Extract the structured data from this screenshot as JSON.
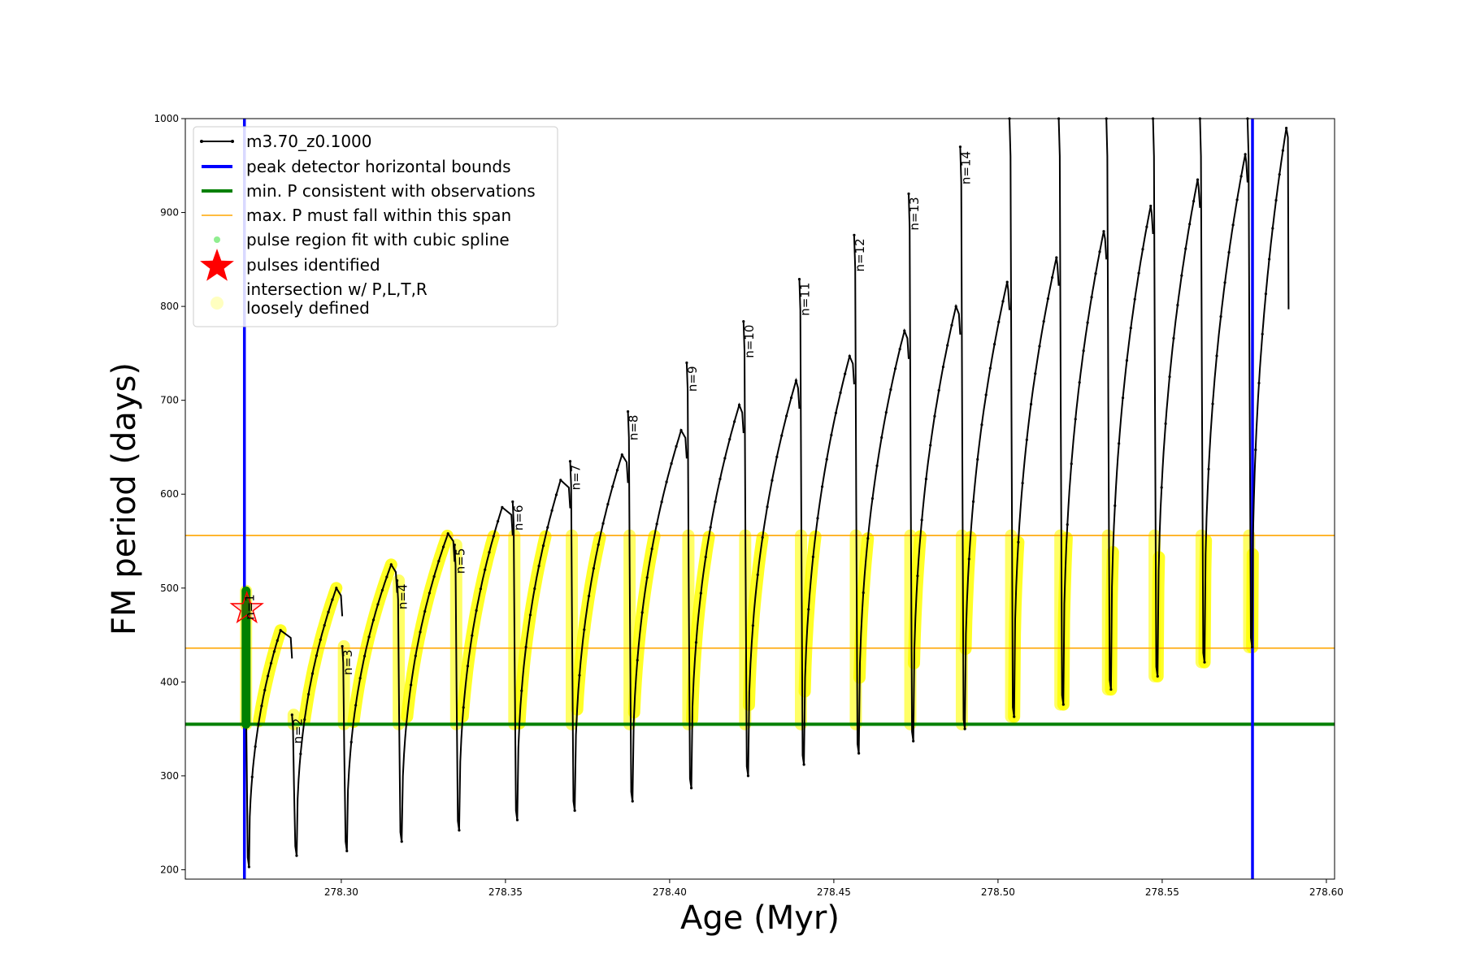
{
  "chart_data": {
    "type": "line",
    "xlabel": "Age (Myr)",
    "ylabel": "FM period (days)",
    "xlim": [
      278.2525,
      278.6025
    ],
    "ylim": [
      190,
      1000
    ],
    "x_ticks": [
      278.3,
      278.35,
      278.4,
      278.45,
      278.5,
      278.55,
      278.6
    ],
    "x_tick_labels": [
      "278.30",
      "278.35",
      "278.40",
      "278.45",
      "278.50",
      "278.55",
      "278.60"
    ],
    "y_ticks": [
      200,
      300,
      400,
      500,
      600,
      700,
      800,
      900,
      1000
    ],
    "y_tick_labels": [
      "200",
      "300",
      "400",
      "500",
      "600",
      "700",
      "800",
      "900",
      "1000"
    ],
    "grid": false,
    "legend_position": "top-left",
    "legend": [
      {
        "label": "m3.70_z0.1000",
        "kind": "line-marker",
        "color": "#000000"
      },
      {
        "label": "peak detector horizontal bounds",
        "kind": "line",
        "color": "#0000ff"
      },
      {
        "label": "min. P consistent with observations",
        "kind": "line",
        "color": "#008000"
      },
      {
        "label": "max. P must fall within this span",
        "kind": "line",
        "color": "#ffa500"
      },
      {
        "label": "pulse region fit with cubic spline",
        "kind": "dot",
        "color": "#90ee90"
      },
      {
        "label": "pulses identified",
        "kind": "star",
        "color": "#ff0000"
      },
      {
        "label": "intersection w/ P,L,T,R",
        "label2": "loosely defined",
        "kind": "circle",
        "color": "#ffffc0"
      }
    ],
    "vertical_lines": [
      {
        "name": "peak detector horizontal bounds",
        "x": 278.2705,
        "color": "#0000ff"
      },
      {
        "name": "peak detector horizontal bounds",
        "x": 278.5775,
        "color": "#0000ff"
      }
    ],
    "horizontal_lines": [
      {
        "name": "min. P consistent with observations",
        "y": 355,
        "color": "#008000"
      },
      {
        "name": "max. P must fall within this span",
        "y": 436,
        "color": "#ffa500"
      },
      {
        "name": "max. P must fall within this span",
        "y": 556,
        "color": "#ffa500"
      }
    ],
    "pulses": [
      {
        "label": "n=1",
        "t_pulse": 278.2705,
        "spike_top": 497,
        "min": 203,
        "rec_end": 278.2815,
        "peak_x": 278.2815,
        "peak": 455,
        "next_start": 278.285,
        "highlighted": true
      },
      {
        "label": "n=2",
        "t_pulse": 278.285,
        "spike_top": 365,
        "min": 215,
        "rec_end": 278.2985,
        "peak_x": 278.2985,
        "peak": 500,
        "next_start": 278.3003,
        "highlighted": true
      },
      {
        "label": "n=3",
        "t_pulse": 278.3003,
        "spike_top": 438,
        "min": 220,
        "rec_end": 278.3152,
        "peak_x": 278.3152,
        "peak": 525,
        "next_start": 278.317,
        "highlighted": true
      },
      {
        "label": "n=4",
        "t_pulse": 278.317,
        "spike_top": 508,
        "min": 230,
        "rec_end": 278.3325,
        "peak_x": 278.3325,
        "peak": 558,
        "next_start": 278.3345,
        "highlighted": true
      },
      {
        "label": "n=5",
        "t_pulse": 278.3345,
        "spike_top": 546,
        "min": 242,
        "rec_end": 278.3495,
        "peak_x": 278.349,
        "peak": 586,
        "next_start": 278.3522,
        "highlighted": true
      },
      {
        "label": "n=6",
        "t_pulse": 278.3522,
        "spike_top": 592,
        "min": 253,
        "rec_end": 278.3668,
        "peak_x": 278.3668,
        "peak": 615,
        "next_start": 278.3697,
        "highlighted": true
      },
      {
        "label": "n=7",
        "t_pulse": 278.3697,
        "spike_top": 635,
        "min": 263,
        "rec_end": 278.3855,
        "peak_x": 278.3855,
        "peak": 642,
        "next_start": 278.3873,
        "highlighted": true
      },
      {
        "label": "n=8",
        "t_pulse": 278.3873,
        "spike_top": 688,
        "min": 273,
        "rec_end": 278.4035,
        "peak_x": 278.4035,
        "peak": 668,
        "next_start": 278.4052,
        "highlighted": true
      },
      {
        "label": "n=9",
        "t_pulse": 278.4052,
        "spike_top": 740,
        "min": 287,
        "rec_end": 278.4212,
        "peak_x": 278.4212,
        "peak": 695,
        "next_start": 278.4225,
        "highlighted": true
      },
      {
        "label": "n=10",
        "t_pulse": 278.4225,
        "spike_top": 784,
        "min": 300,
        "rec_end": 278.4385,
        "peak_x": 278.4385,
        "peak": 721,
        "next_start": 278.4395,
        "highlighted": true
      },
      {
        "label": "n=11",
        "t_pulse": 278.4395,
        "spike_top": 829,
        "min": 312,
        "rec_end": 278.4548,
        "peak_x": 278.4548,
        "peak": 747,
        "next_start": 278.4562,
        "highlighted": true
      },
      {
        "label": "n=12",
        "t_pulse": 278.4562,
        "spike_top": 876,
        "min": 324,
        "rec_end": 278.4715,
        "peak_x": 278.4715,
        "peak": 774,
        "next_start": 278.4728,
        "highlighted": true
      },
      {
        "label": "n=13",
        "t_pulse": 278.4728,
        "spike_top": 920,
        "min": 337,
        "rec_end": 278.4872,
        "peak_x": 278.4872,
        "peak": 800,
        "next_start": 278.4885,
        "highlighted": true
      },
      {
        "label": "n=14",
        "t_pulse": 278.4885,
        "spike_top": 970,
        "min": 350,
        "rec_end": 278.5028,
        "peak_x": 278.5028,
        "peak": 826,
        "next_start": 278.5035,
        "highlighted": true
      },
      {
        "label": "",
        "t_pulse": 278.5035,
        "spike_top": 1000,
        "min": 363,
        "rec_end": 278.5178,
        "peak_x": 278.5178,
        "peak": 852,
        "next_start": 278.5185,
        "highlighted": true
      },
      {
        "label": "",
        "t_pulse": 278.5185,
        "spike_top": 1000,
        "min": 376,
        "rec_end": 278.5322,
        "peak_x": 278.5322,
        "peak": 880,
        "next_start": 278.533,
        "highlighted": true
      },
      {
        "label": "",
        "t_pulse": 278.533,
        "spike_top": 1000,
        "min": 392,
        "rec_end": 278.5465,
        "peak_x": 278.5465,
        "peak": 907,
        "next_start": 278.5472,
        "highlighted": true
      },
      {
        "label": "",
        "t_pulse": 278.5472,
        "spike_top": 1000,
        "min": 406,
        "rec_end": 278.5608,
        "peak_x": 278.5608,
        "peak": 935,
        "next_start": 278.5615,
        "highlighted": true
      },
      {
        "label": "",
        "t_pulse": 278.5615,
        "spike_top": 1000,
        "min": 421,
        "rec_end": 278.5753,
        "peak_x": 278.5753,
        "peak": 962,
        "next_start": 278.576,
        "highlighted": true
      },
      {
        "label": "",
        "t_pulse": 278.576,
        "spike_top": 1000,
        "min": 437,
        "rec_end": 278.5875,
        "peak_x": 278.5878,
        "peak": 990,
        "next_start": 278.5885,
        "end_value": 797,
        "highlighted": true
      }
    ],
    "cubic_spline_region": {
      "x": 278.271,
      "y_min": 355,
      "y_max": 497,
      "color": "#008000"
    },
    "pulses_identified": [
      {
        "x": 278.2705,
        "y": 478
      }
    ]
  }
}
